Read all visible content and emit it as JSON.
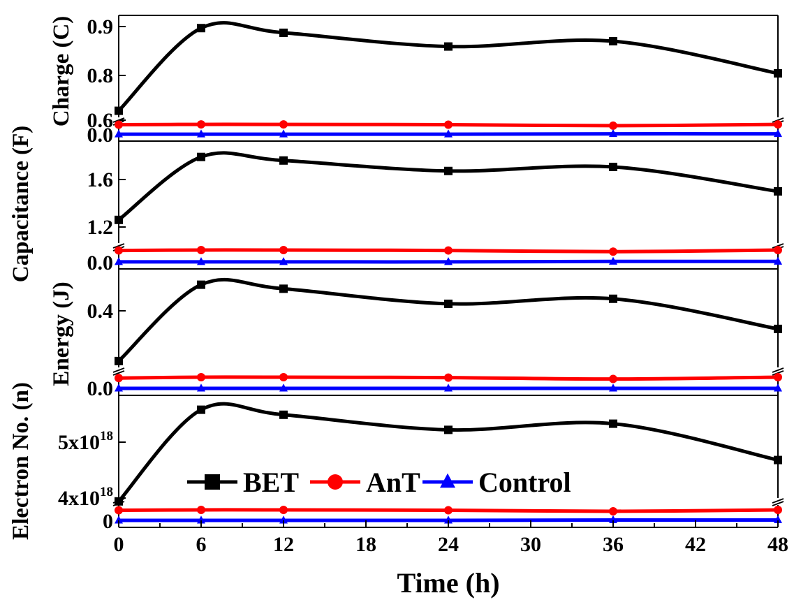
{
  "chart_data": {
    "type": "line",
    "x": [
      0,
      6,
      12,
      24,
      36,
      48
    ],
    "xlabel": "Time (h)",
    "xlim": [
      0,
      48
    ],
    "xticks": [
      "0",
      "6",
      "12",
      "18",
      "24",
      "30",
      "36",
      "42",
      "48"
    ],
    "legend": {
      "placement": "lower-center of bottom panel",
      "entries": [
        "BET",
        "AnT",
        "Control"
      ]
    },
    "colors": {
      "BET": "#000000",
      "AnT": "#ff0000",
      "Control": "#0000ff",
      "axis": "#000000"
    },
    "markers": {
      "BET": "square",
      "AnT": "circle",
      "Control": "triangle"
    },
    "axis_break": true,
    "panels": [
      {
        "ylabel": "Charge (C)",
        "ticks": {
          "low": [
            "0.0"
          ],
          "high": [
            "0.6",
            "0.8",
            "0.9"
          ]
        },
        "series": [
          {
            "name": "BET",
            "values": [
              0.63,
              0.895,
              0.88,
              0.836,
              0.853,
              0.75
            ]
          },
          {
            "name": "AnT",
            "values": [
              0.031,
              0.032,
              0.032,
              0.031,
              0.028,
              0.032
            ]
          },
          {
            "name": "Control",
            "values": [
              0.002,
              0.002,
              0.002,
              0.002,
              0.003,
              0.003
            ]
          }
        ]
      },
      {
        "ylabel": "Capacitance (F)",
        "ticks": {
          "low": [
            "0.0"
          ],
          "high": [
            "1.2",
            "1.6"
          ]
        },
        "series": [
          {
            "name": "BET",
            "values": [
              1.26,
              1.79,
              1.76,
              1.672,
              1.706,
              1.5
            ]
          },
          {
            "name": "AnT",
            "values": [
              0.062,
              0.064,
              0.064,
              0.062,
              0.056,
              0.064
            ]
          },
          {
            "name": "Control",
            "values": [
              0.004,
              0.004,
              0.004,
              0.004,
              0.006,
              0.006
            ]
          }
        ]
      },
      {
        "ylabel": "Energy (J)",
        "ticks": {
          "low": [
            "0.0"
          ],
          "high": [
            "0.4"
          ]
        },
        "series": [
          {
            "name": "BET",
            "values": [
              0.15,
              0.53,
              0.51,
              0.435,
              0.46,
              0.31
            ]
          },
          {
            "name": "AnT",
            "values": [
              0.023,
              0.025,
              0.025,
              0.024,
              0.021,
              0.025
            ]
          },
          {
            "name": "Control",
            "values": [
              0.0,
              0.0,
              0.0,
              0.0,
              0.0,
              0.0
            ]
          }
        ]
      },
      {
        "ylabel": "Electron No. (n)",
        "ticks": {
          "low": [
            "0"
          ],
          "high": [
            "4x10",
            "5x10"
          ],
          "superscript": "18"
        },
        "series": [
          {
            "name": "BET",
            "values": [
              3.94e+18,
              5.58e+18,
              5.49e+18,
              5.22e+18,
              5.33e+18,
              4.68e+18
            ]
          },
          {
            "name": "AnT",
            "values": [
              1.94e+17,
              2e+17,
              2e+17,
              1.94e+17,
              1.75e+17,
              2e+17
            ]
          },
          {
            "name": "Control",
            "values": [
              1.2e+16,
              1.2e+16,
              1.2e+16,
              1.2e+16,
              1.9e+16,
              1.9e+16
            ]
          }
        ]
      }
    ]
  }
}
